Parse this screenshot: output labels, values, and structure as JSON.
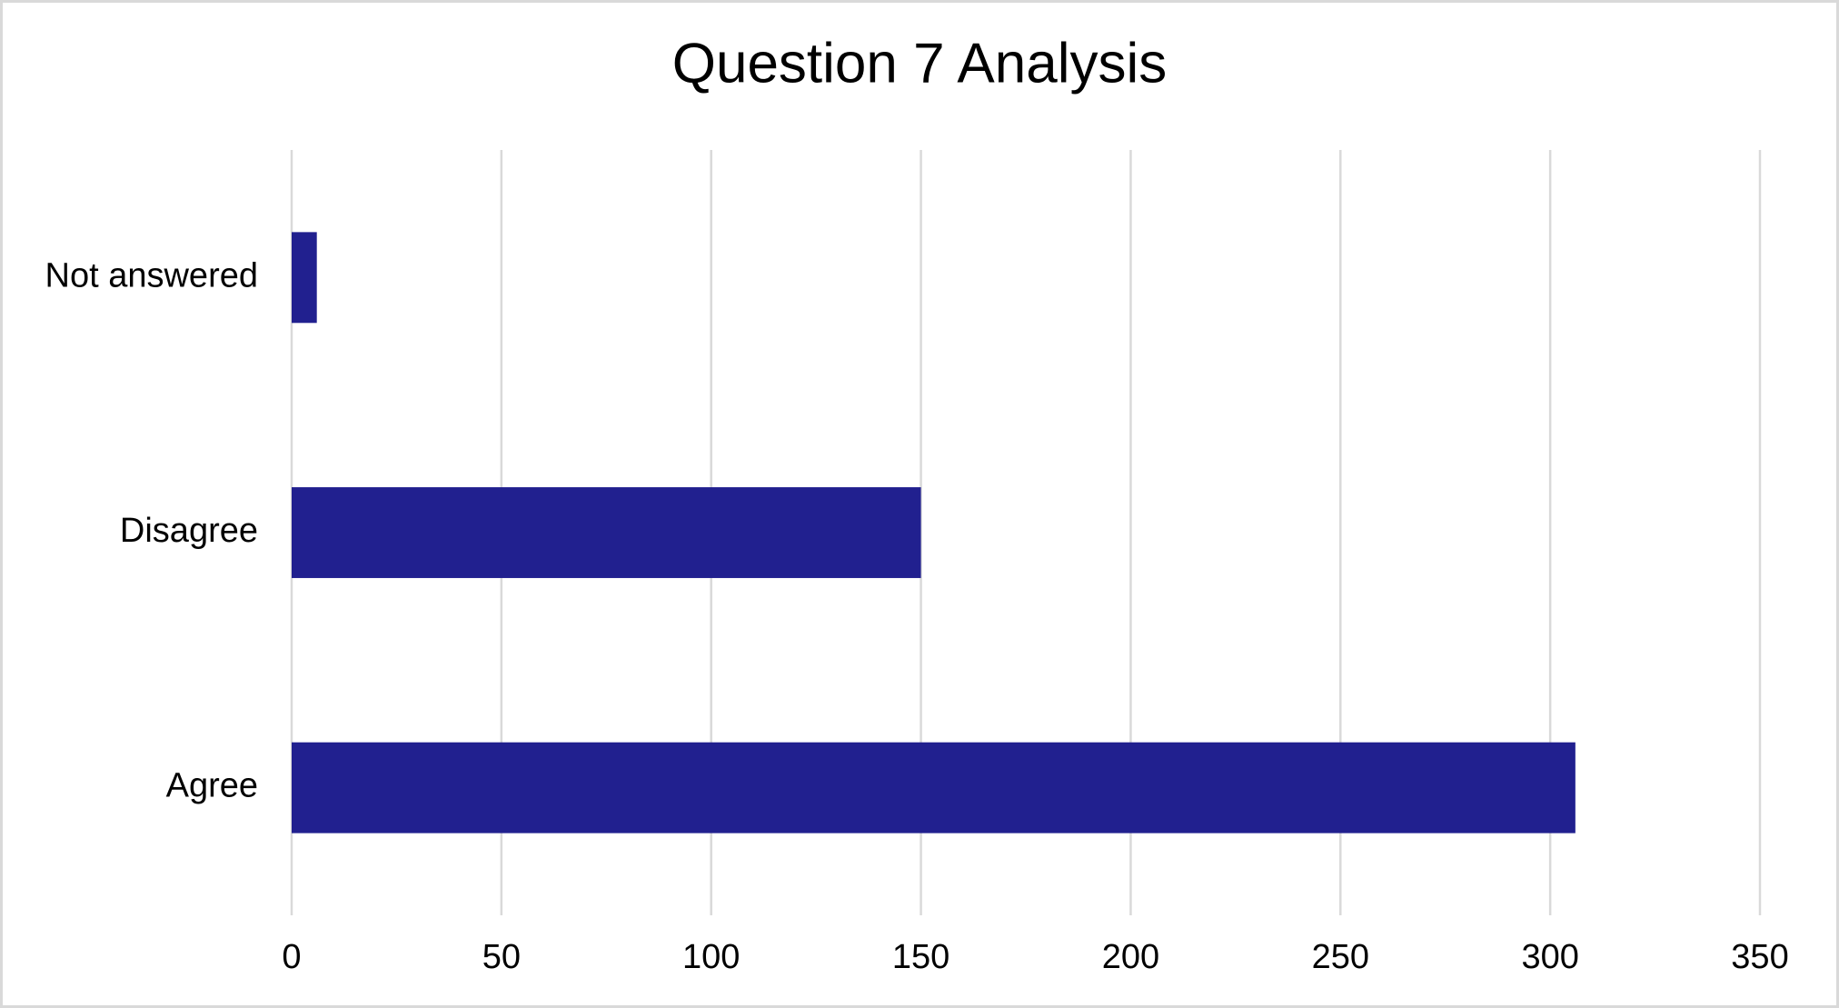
{
  "chart_data": {
    "type": "hbar",
    "title": "Question 7 Analysis",
    "categories": [
      "Agree",
      "Disagree",
      "Not answered"
    ],
    "values": [
      306,
      150,
      6
    ],
    "color": "#21208f",
    "xlim": [
      0,
      350
    ],
    "xticks": [
      0,
      50,
      100,
      150,
      200,
      250,
      300,
      350
    ],
    "grid": true
  }
}
